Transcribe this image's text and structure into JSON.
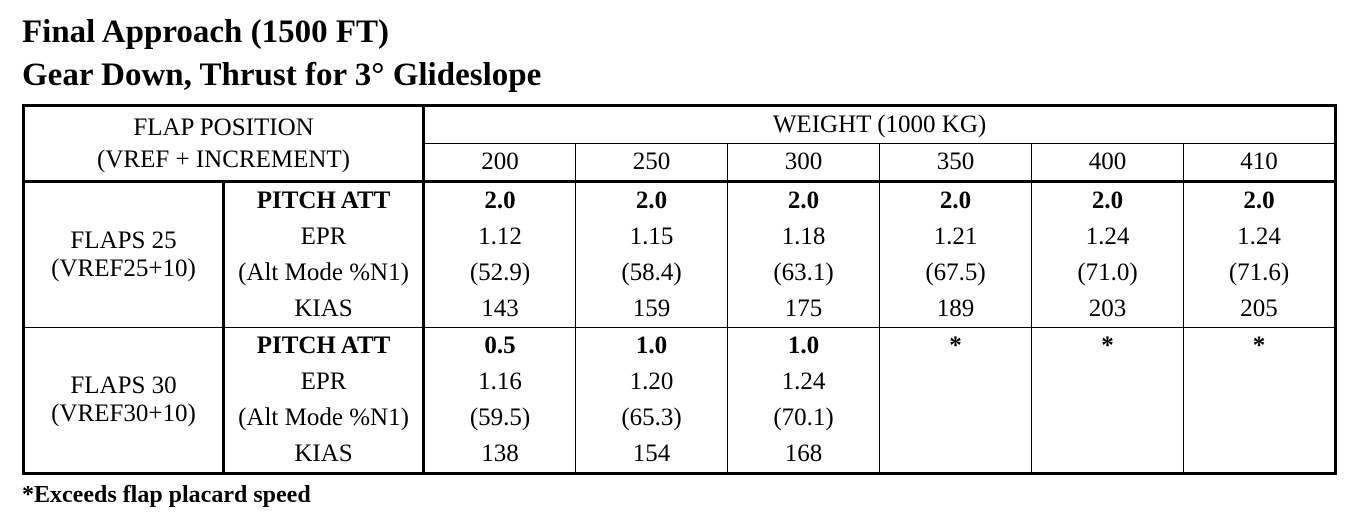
{
  "header": {
    "title": "Final Approach (1500 FT)",
    "subtitle": "Gear Down, Thrust for 3° Glideslope"
  },
  "table": {
    "flap_header": [
      "FLAP POSITION",
      "(VREF + INCREMENT)"
    ],
    "weight_header": "WEIGHT (1000 KG)",
    "weights": [
      "200",
      "250",
      "300",
      "350",
      "400",
      "410"
    ],
    "groups": [
      {
        "flap": "FLAPS 25",
        "speed": "(VREF25+10)",
        "rows": [
          {
            "param": "PITCH ATT",
            "values": [
              "2.0",
              "2.0",
              "2.0",
              "2.0",
              "2.0",
              "2.0"
            ]
          },
          {
            "param": "EPR",
            "values": [
              "1.12",
              "1.15",
              "1.18",
              "1.21",
              "1.24",
              "1.24"
            ]
          },
          {
            "param": "(Alt Mode %N1)",
            "values": [
              "(52.9)",
              "(58.4)",
              "(63.1)",
              "(67.5)",
              "(71.0)",
              "(71.6)"
            ]
          },
          {
            "param": "KIAS",
            "values": [
              "143",
              "159",
              "175",
              "189",
              "203",
              "205"
            ]
          }
        ]
      },
      {
        "flap": "FLAPS 30",
        "speed": "(VREF30+10)",
        "rows": [
          {
            "param": "PITCH ATT",
            "values": [
              "0.5",
              "1.0",
              "1.0",
              "*",
              "*",
              "*"
            ]
          },
          {
            "param": "EPR",
            "values": [
              "1.16",
              "1.20",
              "1.24"
            ]
          },
          {
            "param": "(Alt Mode %N1)",
            "values": [
              "(59.5)",
              "(65.3)",
              "(70.1)"
            ]
          },
          {
            "param": "KIAS",
            "values": [
              "138",
              "154",
              "168"
            ]
          }
        ]
      }
    ]
  },
  "footnote": "*Exceeds flap placard speed"
}
